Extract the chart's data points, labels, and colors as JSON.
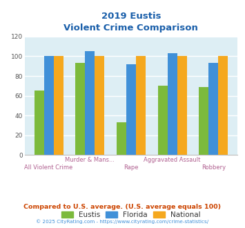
{
  "title_line1": "2019 Eustis",
  "title_line2": "Violent Crime Comparison",
  "categories": [
    "All Violent Crime",
    "Murder & Mans...",
    "Rape",
    "Aggravated Assault",
    "Robbery"
  ],
  "cat_labels_line1": [
    "",
    "Murder & Mans...",
    "",
    "Aggravated Assault",
    ""
  ],
  "cat_labels_line2": [
    "All Violent Crime",
    "",
    "Rape",
    "",
    "Robbery"
  ],
  "eustis": [
    65,
    93,
    33,
    70,
    69
  ],
  "florida": [
    100,
    105,
    92,
    103,
    93
  ],
  "national": [
    100,
    100,
    100,
    100,
    100
  ],
  "eustis_color": "#7cba3c",
  "florida_color": "#4090d8",
  "national_color": "#f5a81e",
  "ylim": [
    0,
    120
  ],
  "yticks": [
    0,
    20,
    40,
    60,
    80,
    100,
    120
  ],
  "bg_color": "#ddeef4",
  "grid_color": "#ffffff",
  "title_color": "#1a5faa",
  "xlabel_color": "#b06090",
  "legend_label_color": "#333333",
  "footnote1": "Compared to U.S. average. (U.S. average equals 100)",
  "footnote2": "© 2025 CityRating.com - https://www.cityrating.com/crime-statistics/",
  "footnote1_color": "#cc4400",
  "footnote2_color": "#4090d8"
}
